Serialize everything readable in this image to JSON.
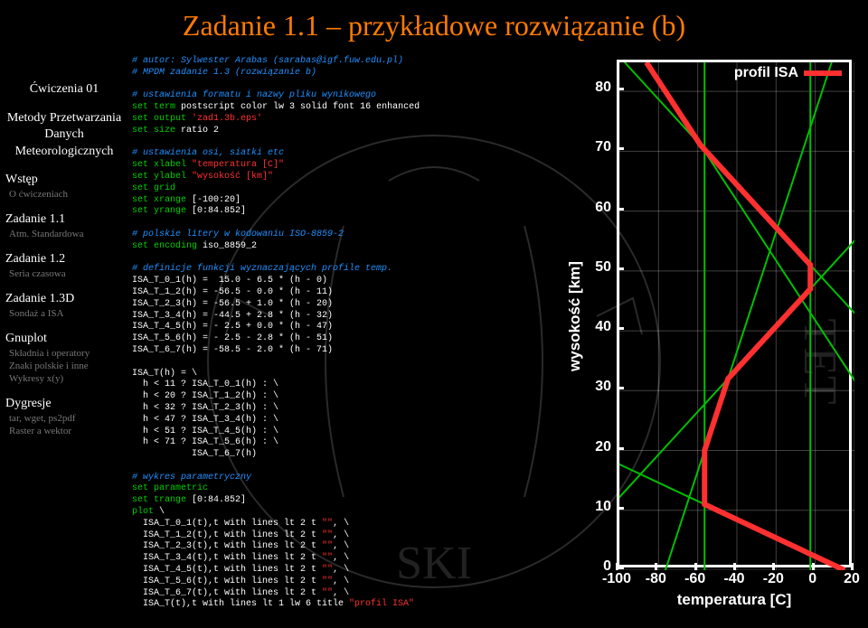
{
  "title": "Zadanie 1.1 – przykładowe rozwiązanie (b)",
  "sidebar": {
    "course_title": "Ćwiczenia 01",
    "course_sub": "Metody Przetwarzania Danych Meteorologicznych",
    "sections": [
      {
        "label": "Wstęp",
        "subs": [
          "O ćwiczeniach"
        ]
      },
      {
        "label": "Zadanie 1.1",
        "subs": [
          "Atm. Standardowa"
        ]
      },
      {
        "label": "Zadanie 1.2",
        "subs": [
          "Seria czasowa"
        ]
      },
      {
        "label": "Zadanie 1.3D",
        "subs": [
          "Sondaż a ISA"
        ]
      },
      {
        "label": "Gnuplot",
        "subs": [
          "Składnia i operatory",
          "Znaki polskie i inne",
          "Wykresy x(y)"
        ]
      },
      {
        "label": "Dygresje",
        "subs": [
          "tar, wget, ps2pdf",
          "Raster a wektor"
        ]
      }
    ]
  },
  "chart": {
    "type": "line",
    "title": "profil ISA",
    "xlabel": "temperatura [C]",
    "ylabel": "wysokość [km]",
    "xlim": [
      -100,
      20
    ],
    "ylim": [
      0,
      84.852
    ],
    "xticks": [
      -100,
      -80,
      -60,
      -40,
      -20,
      0,
      20
    ],
    "yticks": [
      0,
      10,
      20,
      30,
      40,
      50,
      60,
      70,
      80
    ],
    "series": {
      "green_points": [
        [
          15,
          0
        ],
        [
          -56.5,
          11
        ],
        [
          -56.5,
          20
        ],
        [
          -44.5,
          32
        ],
        [
          -2.5,
          47
        ],
        [
          -2.5,
          51
        ],
        [
          -58.5,
          71
        ],
        [
          -86.2,
          84.852
        ]
      ],
      "red_points": [
        [
          15,
          0
        ],
        [
          -56.5,
          11
        ],
        [
          -56.5,
          20
        ],
        [
          -44.5,
          32
        ],
        [
          -2.5,
          47
        ],
        [
          -2.5,
          51
        ],
        [
          -58.5,
          71
        ],
        [
          -86.2,
          84.852
        ]
      ],
      "green_color": "#00c000",
      "red_color": "#ff3030",
      "red_width": 6,
      "green_width": 2
    },
    "background_color": "#000000",
    "border_color": "#ffffff",
    "text_color": "#ffffff",
    "grid_color": "#ffffff",
    "grid_opacity": 0.25,
    "label_fontsize": 17,
    "tick_fontsize": 16
  },
  "code": {
    "c1": "# autor: Sylwester Arabas (sarabas@igf.fuw.edu.pl)",
    "c2": "# MPDM zadanie 1.3 (rozwiązanie b)",
    "c3": "# ustawienia formatu i nazwy pliku wynikowego",
    "k1": "set ",
    "k1b": "term ",
    "l1": "postscript color lw 3 solid font 16 enhanced",
    "k2b": "output ",
    "q1": "'zad1.3b.eps'",
    "k3b": "size ",
    "l3": "ratio 2",
    "c4": "# ustawienia osi, siatki etc",
    "k4b": "xlabel ",
    "q2": "\"temperatura [C]\"",
    "k5b": "ylabel ",
    "q3": "\"wysokość [km]\"",
    "k6": "grid",
    "k7b": "xrange ",
    "l7": "[-100:20]",
    "k8b": "yrange ",
    "l8": "[0:84.852]",
    "c5": "# polskie litery w kodowaniu ISO-8859-2",
    "k9b": "encoding ",
    "l9": "iso_8859_2",
    "c6": "# definicje funkcji wyznaczających profile temp.",
    "d1": "ISA_T_0_1(h) =  15.0 - 6.5 * (h - 0)",
    "d2": "ISA_T_1_2(h) = -56.5 - 0.0 * (h - 11)",
    "d3": "ISA_T_2_3(h) = -56.5 + 1.0 * (h - 20)",
    "d4": "ISA_T_3_4(h) = -44.5 + 2.8 * (h - 32)",
    "d5": "ISA_T_4_5(h) = - 2.5 + 0.0 * (h - 47)",
    "d6": "ISA_T_5_6(h) = - 2.5 - 2.8 * (h - 51)",
    "d7": "ISA_T_6_7(h) = -58.5 - 2.0 * (h - 71)",
    "f0": "ISA_T(h) = \\",
    "f1": "  h < 11 ? ISA_T_0_1(h) : \\",
    "f2": "  h < 20 ? ISA_T_1_2(h) : \\",
    "f3": "  h < 32 ? ISA_T_2_3(h) : \\",
    "f4": "  h < 47 ? ISA_T_3_4(h) : \\",
    "f5": "  h < 51 ? ISA_T_4_5(h) : \\",
    "f6": "  h < 71 ? ISA_T_5_6(h) : \\",
    "f7": "           ISA_T_6_7(h)",
    "c7": "# wykres parametryczny",
    "k10": "parametric",
    "k11b": "trange ",
    "l11": "[0:84.852]",
    "p0": "plot ",
    "p0b": "\\",
    "p1a": "  ISA_T_0_1(t),t with lines lt 2 t ",
    "p2a": "  ISA_T_1_2(t),t with lines lt 2 t ",
    "p3a": "  ISA_T_2_3(t),t with lines lt 2 t ",
    "p4a": "  ISA_T_3_4(t),t with lines lt 2 t ",
    "p5a": "  ISA_T_4_5(t),t with lines lt 2 t ",
    "p6a": "  ISA_T_5_6(t),t with lines lt 2 t ",
    "p7a": "  ISA_T_6_7(t),t with lines lt 2 t ",
    "pe": "\"\"",
    "pend": ", \\",
    "p8a": "  ISA_T(t),t with lines lt 1 lw 6 title ",
    "p8b": "\"profil ISA\""
  },
  "colors": {
    "title": "#ff7b00",
    "keyword": "#00d000",
    "comment": "#2090ff",
    "string": "#ff3030",
    "default": "#ffffff",
    "side_dim": "#777777",
    "background": "#000000"
  }
}
